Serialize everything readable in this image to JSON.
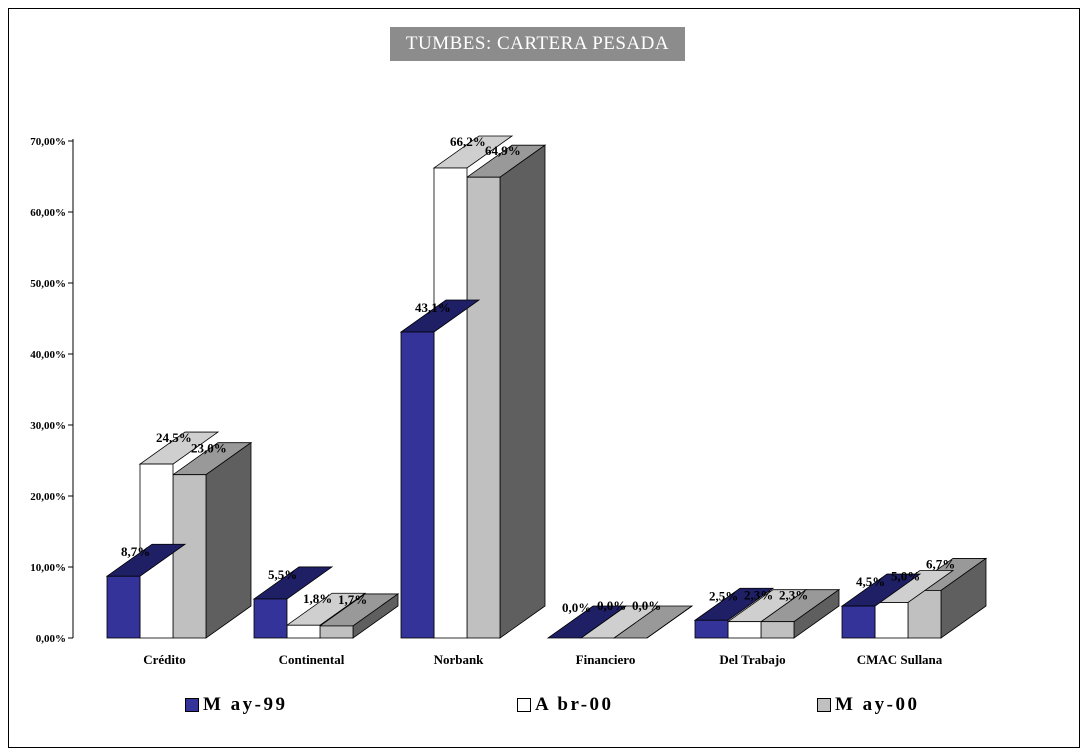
{
  "chart_data": {
    "type": "bar",
    "title": "TUMBES:  CARTERA PESADA",
    "categories": [
      "Crédito",
      "Continental",
      "Norbank",
      "Financiero",
      "Del Trabajo",
      "CMAC Sullana"
    ],
    "series": [
      {
        "name": "May-99",
        "color": "#333399",
        "top_color": "#1f1f66",
        "side_color": "#222266",
        "values": [
          8.7,
          5.5,
          43.1,
          0.0,
          2.5,
          4.5
        ],
        "labels": [
          "8,7%",
          "5,5%",
          "43,1%",
          "0,0%",
          "2,5%",
          "4,5%"
        ]
      },
      {
        "name": "Abr-00",
        "color": "#ffffff",
        "top_color": "#cfcfcf",
        "side_color": "#9a9a9a",
        "values": [
          24.5,
          1.8,
          66.2,
          0.0,
          2.3,
          5.0
        ],
        "labels": [
          "24,5%",
          "1,8%",
          "66,2%",
          "0,0%",
          "2,3%",
          "5,0%"
        ]
      },
      {
        "name": "May-00",
        "color": "#c0c0c0",
        "top_color": "#999999",
        "side_color": "#5f5f5f",
        "values": [
          23.0,
          1.7,
          64.9,
          0.0,
          2.3,
          6.7
        ],
        "labels": [
          "23,0%",
          "1,7%",
          "64,9%",
          "0,0%",
          "2,3%",
          "6,7%"
        ]
      }
    ],
    "yticks": [
      "0,00%",
      "10,00%",
      "20,00%",
      "30,00%",
      "40,00%",
      "50,00%",
      "60,00%",
      "70,00%"
    ],
    "ylim": [
      0,
      70
    ],
    "legend_position": "bottom"
  },
  "legend": [
    {
      "label": "M ay-99",
      "color": "#333399"
    },
    {
      "label": "A br-00",
      "color": "#ffffff"
    },
    {
      "label": "M ay-00",
      "color": "#c0c0c0"
    }
  ]
}
